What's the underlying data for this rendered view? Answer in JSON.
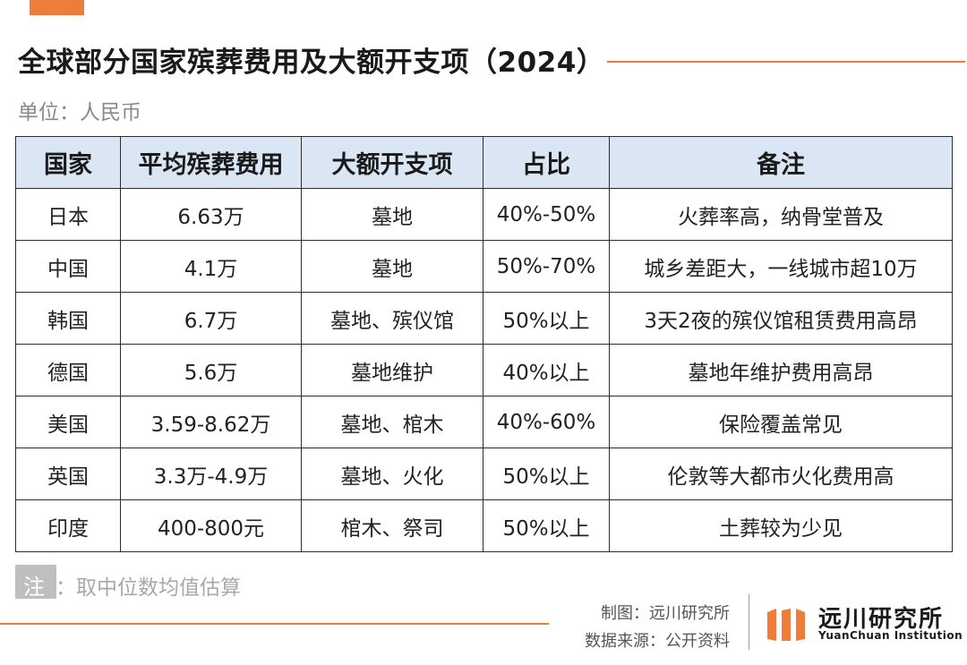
{
  "title": "全球部分国家殡葬费用及大额开支项（2024）",
  "unit": "单位：人民币",
  "table": {
    "headers": [
      "国家",
      "平均殡葬费用",
      "大额开支项",
      "占比",
      "备注"
    ],
    "rows": [
      [
        "日本",
        "6.63万",
        "墓地",
        "40%-50%",
        "火葬率高，纳骨堂普及"
      ],
      [
        "中国",
        "4.1万",
        "墓地",
        "50%-70%",
        "城乡差距大，一线城市超10万"
      ],
      [
        "韩国",
        "6.7万",
        "墓地、殡仪馆",
        "50%以上",
        "3天2夜的殡仪馆租赁费用高昂"
      ],
      [
        "德国",
        "5.6万",
        "墓地维护",
        "40%以上",
        "墓地年维护费用高昂"
      ],
      [
        "美国",
        "3.59-8.62万",
        "墓地、棺木",
        "40%-60%",
        "保险覆盖常见"
      ],
      [
        "英国",
        "3.3万-4.9万",
        "墓地、火化",
        "50%以上",
        "伦敦等大都市火化费用高"
      ],
      [
        "印度",
        "400-800元",
        "棺木、祭司",
        "50%以上",
        "土葬较为少见"
      ]
    ]
  },
  "note": {
    "label": "注",
    "text": "：取中位数均值估算"
  },
  "footer": {
    "chart_by": "制图：远川研究所",
    "source": "数据来源：公开资料",
    "logo_cn": "远川研究所",
    "logo_en": "YuanChuan Institution"
  },
  "colors": {
    "accent": "#ef7d3a",
    "header_bg": "#dbe6f4",
    "note_bg": "#bfbfbf"
  }
}
